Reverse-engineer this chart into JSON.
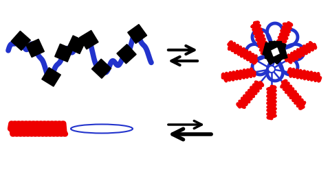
{
  "bg_color": "#ffffff",
  "blue": "#2233cc",
  "red": "#ee0000",
  "black": "#000000",
  "figw": 4.8,
  "figh": 2.76,
  "dpi": 100
}
